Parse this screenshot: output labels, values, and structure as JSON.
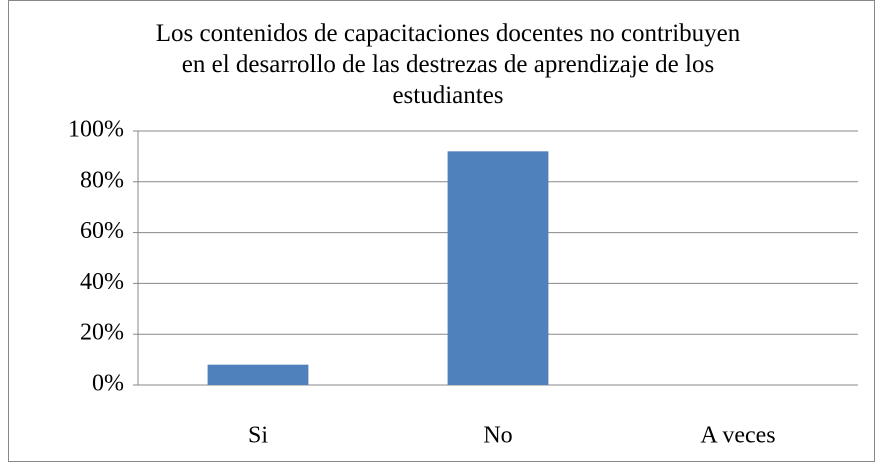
{
  "chart_data": {
    "type": "bar",
    "title": "Los contenidos de capacitaciones docentes no contribuyen en el desarrollo de las destrezas de aprendizaje de los estudiantes",
    "categories": [
      "Si",
      "No",
      "A veces"
    ],
    "values": [
      8,
      92,
      0
    ],
    "color": "#4f81bd",
    "ylim": [
      0,
      100
    ],
    "yticks": [
      {
        "value": 0,
        "label": "0%"
      },
      {
        "value": 20,
        "label": "20%"
      },
      {
        "value": 40,
        "label": "40%"
      },
      {
        "value": 60,
        "label": "60%"
      },
      {
        "value": 80,
        "label": "80%"
      },
      {
        "value": 100,
        "label": "100%"
      }
    ],
    "grid": true
  }
}
